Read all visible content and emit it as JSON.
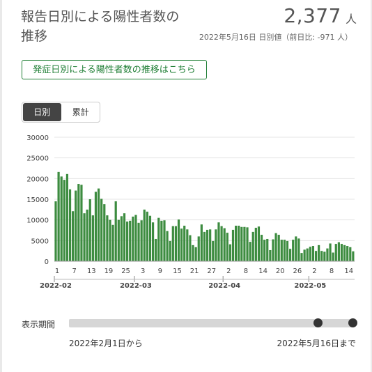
{
  "header": {
    "title": "報告日別による陽性者数の推移",
    "count": "2,377",
    "count_unit": "人",
    "subtitle": "2022年5月16日 日別値（前日比: -971 人）"
  },
  "link_button": "発症日別による陽性者数の推移はこちら",
  "toggle": {
    "options": [
      "日別",
      "累計"
    ],
    "selected": "日別"
  },
  "slider": {
    "label": "表示期間",
    "from_text": "2022年2月1日から",
    "to_text": "2022年5月16日まで",
    "start": 0.9,
    "end": 1.0
  },
  "colors": {
    "bar": "#3d8c40",
    "accent": "#1e7e34",
    "axis": "#cccccc"
  },
  "chart_data": {
    "type": "bar",
    "title": "",
    "xlabel": "",
    "ylabel": "",
    "ylim": [
      0,
      30000
    ],
    "yticks": [
      0,
      5000,
      10000,
      15000,
      20000,
      25000,
      30000
    ],
    "x_tick_labels": [
      "1",
      "7",
      "13",
      "19",
      "25",
      "3",
      "9",
      "15",
      "21",
      "27",
      "2",
      "8",
      "14",
      "20",
      "26",
      "2",
      "8",
      "14"
    ],
    "x_tick_indices": [
      0,
      6,
      12,
      18,
      24,
      30,
      36,
      42,
      48,
      54,
      60,
      66,
      72,
      78,
      84,
      90,
      96,
      102
    ],
    "month_labels": [
      "2022-02",
      "2022-03",
      "2022-04",
      "2022-05"
    ],
    "month_indices": [
      0,
      28,
      59,
      89
    ],
    "start_date": "2022-02-01",
    "series": [
      {
        "values": [
          14500,
          21600,
          20500,
          19700,
          21100,
          17400,
          12100,
          17100,
          18700,
          18500,
          11600,
          12500,
          15000,
          11100,
          16800,
          17600,
          15100,
          13800,
          11100,
          10000,
          8800,
          14500,
          10000,
          10900,
          11600,
          9600,
          9800,
          10800,
          11200,
          9300,
          9900,
          12500,
          12000,
          11000,
          9400,
          5400,
          10500,
          9800,
          9900,
          7300,
          4900,
          8500,
          8500,
          10100,
          7900,
          8600,
          7700,
          6300,
          3900,
          3400,
          6000,
          8900,
          7100,
          7600,
          7700,
          4900,
          7700,
          9400,
          8500,
          8000,
          6900,
          4100,
          7600,
          8600,
          8600,
          8300,
          8300,
          8200,
          4700,
          7100,
          8100,
          8400,
          6400,
          5200,
          5400,
          2700,
          5300,
          6800,
          6400,
          5200,
          5200,
          4900,
          3000,
          5200,
          6000,
          5500,
          2000,
          2800,
          3100,
          3500,
          3700,
          2500,
          3900,
          2500,
          2300,
          3100,
          4300,
          2100,
          4200,
          4600,
          4200,
          3900,
          3700,
          3400,
          2400
        ]
      }
    ]
  }
}
